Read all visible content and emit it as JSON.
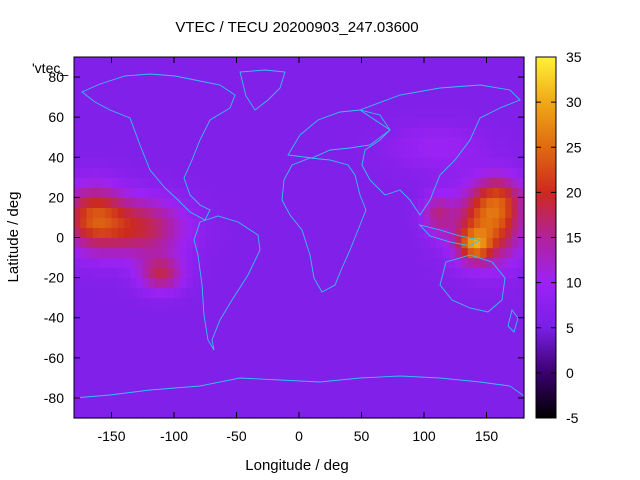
{
  "chart_data": {
    "type": "heatmap",
    "title": "VTEC / TECU 20200903_247.03600",
    "xlabel": "Longitude / deg",
    "ylabel": "Latitude / deg",
    "series_label": "'vtec_",
    "xlim": [
      -180,
      180
    ],
    "ylim": [
      -90,
      90
    ],
    "xticks": [
      -150,
      -100,
      -50,
      0,
      50,
      100,
      150
    ],
    "yticks": [
      -80,
      -60,
      -40,
      -20,
      0,
      20,
      40,
      60,
      80
    ],
    "colorbar": {
      "range": [
        -5,
        35
      ],
      "ticks": [
        -5,
        0,
        5,
        10,
        15,
        20,
        25,
        30,
        35
      ],
      "palette": [
        "#000000",
        "#3b006e",
        "#7a1fe6",
        "#9c22f4",
        "#b3219a",
        "#cc2a1e",
        "#e06a10",
        "#f0a818",
        "#fff13a"
      ]
    },
    "grid": false,
    "overlay": "coastlines",
    "background_vtec": 6,
    "features": [
      {
        "name": "central-pacific",
        "lon": -165,
        "lat": 10,
        "amp": 15,
        "sx": 25,
        "sy": 16
      },
      {
        "name": "east-pacific",
        "lon": -125,
        "lat": 5,
        "amp": 12,
        "sx": 35,
        "sy": 15
      },
      {
        "name": "southeast-pacific",
        "lon": -110,
        "lat": -18,
        "amp": 11,
        "sx": 18,
        "sy": 9
      },
      {
        "name": "west-pacific",
        "lon": 150,
        "lat": 5,
        "amp": 17,
        "sx": 28,
        "sy": 18
      },
      {
        "name": "northwest-pacific",
        "lon": 160,
        "lat": 20,
        "amp": 10,
        "sx": 20,
        "sy": 12
      },
      {
        "name": "australia-peak",
        "lon": 140,
        "lat": -4,
        "amp": 12,
        "sx": 12,
        "sy": 7
      },
      {
        "name": "indonesia",
        "lon": 110,
        "lat": 12,
        "amp": 8,
        "sx": 12,
        "sy": 10
      },
      {
        "name": "north-asia",
        "lon": 110,
        "lat": 45,
        "amp": 4,
        "sx": 40,
        "sy": 12
      }
    ]
  }
}
